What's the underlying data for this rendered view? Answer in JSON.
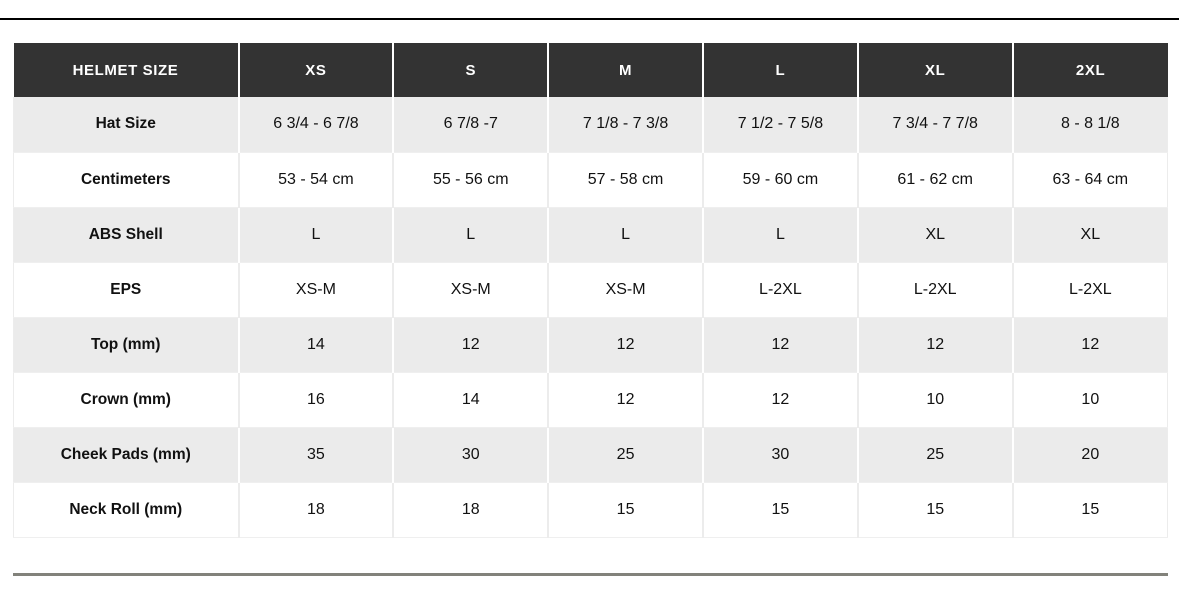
{
  "table": {
    "name": "helmet-size-chart",
    "columns": [
      "HELMET SIZE",
      "XS",
      "S",
      "M",
      "L",
      "XL",
      "2XL"
    ],
    "rows": [
      {
        "label": "Hat Size",
        "values": [
          "6 3/4 - 6 7/8",
          "6 7/8 -7",
          "7 1/8 - 7 3/8",
          "7 1/2 - 7 5/8",
          "7 3/4 - 7 7/8",
          "8 - 8 1/8"
        ]
      },
      {
        "label": "Centimeters",
        "values": [
          "53 - 54 cm",
          "55 - 56 cm",
          "57 - 58 cm",
          "59 - 60 cm",
          "61 - 62 cm",
          "63 - 64 cm"
        ]
      },
      {
        "label": "ABS Shell",
        "values": [
          "L",
          "L",
          "L",
          "L",
          "XL",
          "XL"
        ]
      },
      {
        "label": "EPS",
        "values": [
          "XS-M",
          "XS-M",
          "XS-M",
          "L-2XL",
          "L-2XL",
          "L-2XL"
        ]
      },
      {
        "label": "Top (mm)",
        "values": [
          "14",
          "12",
          "12",
          "12",
          "12",
          "12"
        ]
      },
      {
        "label": "Crown (mm)",
        "values": [
          "16",
          "14",
          "12",
          "12",
          "10",
          "10"
        ]
      },
      {
        "label": "Cheek Pads (mm)",
        "values": [
          "35",
          "30",
          "25",
          "30",
          "25",
          "20"
        ]
      },
      {
        "label": "Neck Roll (mm)",
        "values": [
          "18",
          "18",
          "15",
          "15",
          "15",
          "15"
        ]
      }
    ]
  },
  "colors": {
    "header_bg": "#333333",
    "header_text": "#ffffff",
    "row_alt_bg": "#ebebeb",
    "body_text": "#111111",
    "top_rule": "#000000",
    "bottom_rule": "#82827b"
  }
}
